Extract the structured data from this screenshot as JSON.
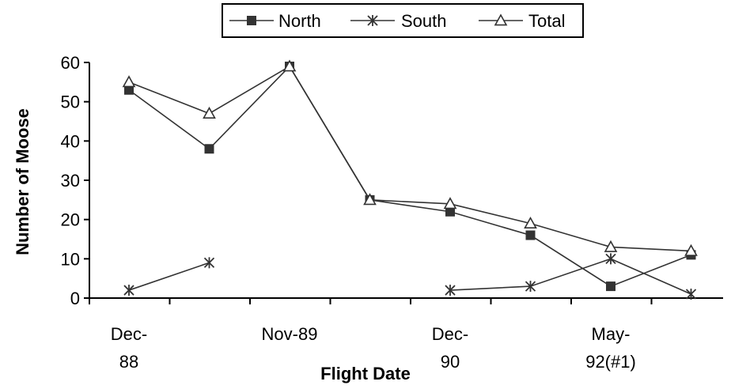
{
  "chart_data": {
    "type": "line",
    "title": "",
    "xlabel": "Flight Date",
    "ylabel": "Number of Moose",
    "ylim": [
      0,
      60
    ],
    "yticks": [
      0,
      10,
      20,
      30,
      40,
      50,
      60
    ],
    "grid": false,
    "legend_position": "top",
    "x_tick_labels": [
      {
        "index": 0,
        "lines": [
          "Dec-",
          "88"
        ]
      },
      {
        "index": 2,
        "lines": [
          "Nov-89"
        ]
      },
      {
        "index": 4,
        "lines": [
          "Dec-",
          "90"
        ]
      },
      {
        "index": 6,
        "lines": [
          "May-",
          "92(#1)"
        ]
      }
    ],
    "categories_count": 8,
    "series": [
      {
        "name": "North",
        "marker": "filled-square",
        "values": [
          53,
          38,
          59,
          25,
          22,
          16,
          3,
          11
        ]
      },
      {
        "name": "South",
        "marker": "asterisk",
        "values": [
          2,
          9,
          null,
          null,
          2,
          3,
          10,
          1
        ]
      },
      {
        "name": "Total",
        "marker": "open-triangle",
        "values": [
          55,
          47,
          59,
          25,
          24,
          19,
          13,
          12
        ]
      }
    ],
    "colors": {
      "line": "#333333",
      "axis": "#000000",
      "background": "#ffffff"
    }
  }
}
